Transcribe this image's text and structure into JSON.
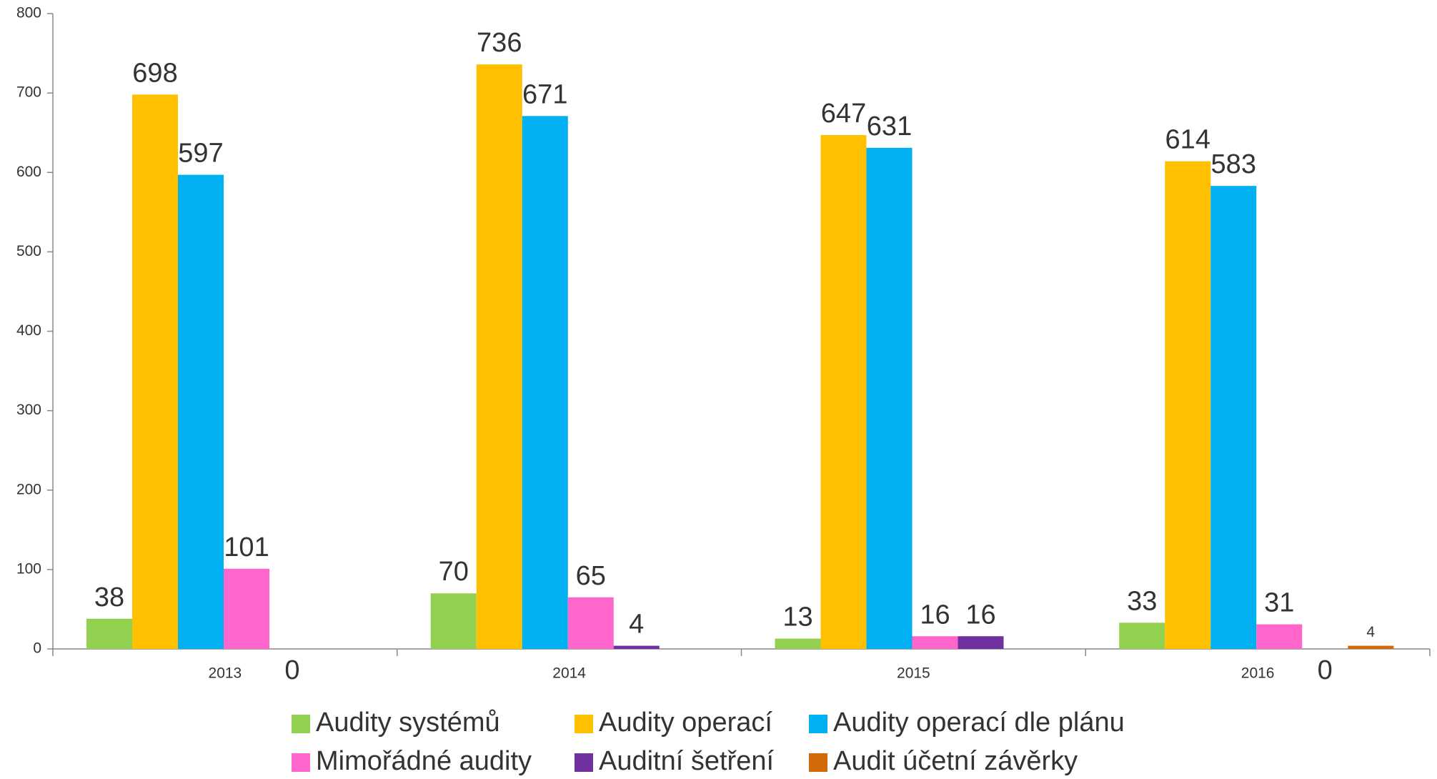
{
  "chart_data": {
    "type": "bar",
    "categories": [
      "2013",
      "2014",
      "2015",
      "2016"
    ],
    "series": [
      {
        "name": "Audity systémů",
        "color": "#92d050",
        "values": [
          38,
          70,
          13,
          33
        ]
      },
      {
        "name": "Audity operací",
        "color": "#ffc000",
        "values": [
          698,
          736,
          647,
          614
        ]
      },
      {
        "name": "Audity operací dle plánu",
        "color": "#00b0f0",
        "values": [
          597,
          671,
          631,
          583
        ]
      },
      {
        "name": "Mimořádné audity",
        "color": "#ff66cc",
        "values": [
          101,
          65,
          16,
          31
        ]
      },
      {
        "name": "Auditní šetření",
        "color": "#7030a0",
        "values": [
          0,
          4,
          16,
          0
        ]
      },
      {
        "name": "Audit účetní závěrky",
        "color": "#d36a0a",
        "values": [
          null,
          null,
          null,
          4
        ]
      }
    ],
    "ylim": [
      0,
      800
    ],
    "yticks": [
      0,
      100,
      200,
      300,
      400,
      500,
      600,
      700,
      800
    ],
    "grid": false,
    "legend": "bottom"
  }
}
